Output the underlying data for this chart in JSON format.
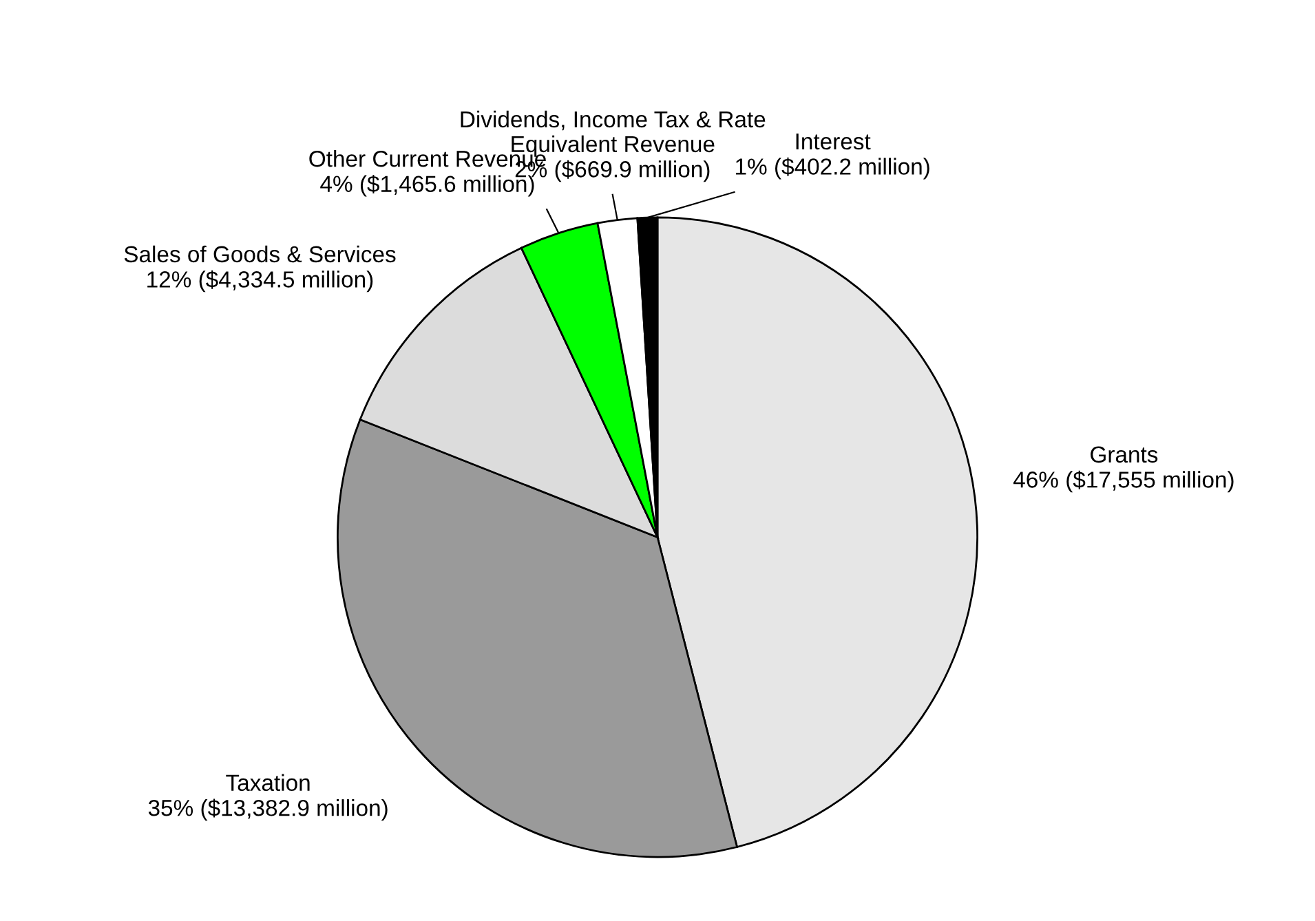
{
  "chart_data": {
    "type": "pie",
    "categories": [
      "Grants",
      "Taxation",
      "Sales of Goods & Services",
      "Other Current Revenue",
      "Dividends, Income Tax & Rate\nEquivalent Revenue",
      "Interest"
    ],
    "values": [
      46,
      35,
      12,
      4,
      2,
      1
    ],
    "value_labels": [
      "46% ($17,555 million)",
      "35% ($13,382.9 million)",
      "12% ($4,334.5 million)",
      "4% ($1,465.6 million)",
      "2% ($669.9 million)",
      "1% ($402.2 million)"
    ],
    "colors": [
      "#e6e6e6",
      "#9a9a9a",
      "#dcdcdc",
      "#00ff00",
      "#ffffff",
      "#000000"
    ],
    "legend": false
  }
}
